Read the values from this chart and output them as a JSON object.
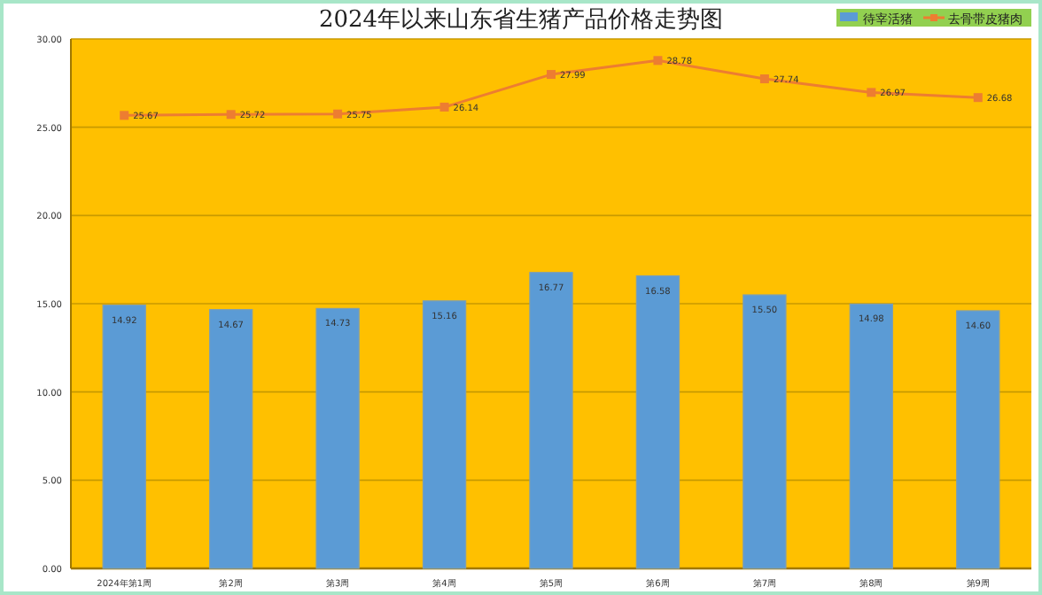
{
  "chart_data": {
    "type": "bar",
    "title": "2024年以来山东省生猪产品价格走势图",
    "categories": [
      "2024年第1周",
      "第2周",
      "第3周",
      "第4周",
      "第5周",
      "第6周",
      "第7周",
      "第8周",
      "第9周"
    ],
    "series": [
      {
        "name": "待宰活猪",
        "color": "#5b9bd5",
        "values": [
          14.92,
          14.67,
          14.73,
          15.16,
          16.77,
          16.58,
          15.5,
          14.98,
          14.6
        ],
        "value_labels": [
          "14.92",
          "14.67",
          "14.73",
          "15.16",
          "16.77",
          "16.58",
          "15.50",
          "14.98",
          "14.60"
        ]
      },
      {
        "name": "去骨带皮猪肉",
        "type": "line",
        "color": "#ed7d31",
        "marker": "square",
        "values": [
          25.67,
          25.72,
          25.75,
          26.14,
          27.99,
          28.78,
          27.74,
          26.97,
          26.68
        ],
        "value_labels": [
          "25.67",
          "25.72",
          "25.75",
          "26.14",
          "27.99",
          "28.78",
          "27.74",
          "26.97",
          "26.68"
        ]
      }
    ],
    "ylim": [
      0,
      30
    ],
    "yticks": [
      {
        "value": 0,
        "label": "0.00"
      },
      {
        "value": 5,
        "label": "5.00"
      },
      {
        "value": 10,
        "label": "10.00"
      },
      {
        "value": 15,
        "label": "15.00"
      },
      {
        "value": 20,
        "label": "20.00"
      },
      {
        "value": 25,
        "label": "25.00"
      },
      {
        "value": 30,
        "label": "30.00"
      }
    ],
    "grid": "y",
    "legend": "top right"
  }
}
